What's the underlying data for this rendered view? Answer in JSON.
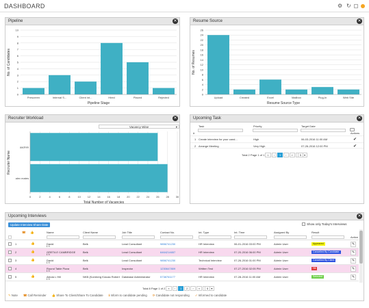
{
  "header": {
    "title": "DASHBOARD"
  },
  "pipeline": {
    "title": "Pipeline",
    "chart_data": {
      "type": "bar",
      "categories": [
        "Prescreen",
        "Internal S...",
        "Client int...",
        "Hired",
        "Placed",
        "Rejected"
      ],
      "values": [
        1,
        3,
        2,
        8,
        5,
        1
      ],
      "ylim": [
        0,
        10
      ],
      "yticks": [
        0,
        1,
        2,
        3,
        4,
        5,
        6,
        7,
        8,
        9,
        10
      ],
      "xlabel": "Pipeline Stage",
      "ylabel": "No. of Candidates",
      "color": "#3fb0c4"
    }
  },
  "resume": {
    "title": "Resume Source",
    "chart_data": {
      "type": "bar",
      "categories": [
        "Upload",
        "Created",
        "Excel",
        "Mailbox",
        "Plug-In",
        "Web Site"
      ],
      "values": [
        24,
        2,
        6,
        2,
        3,
        2
      ],
      "ylim": [
        0,
        26
      ],
      "yticks": [
        0,
        2,
        4,
        6,
        8,
        10,
        12,
        14,
        16,
        18,
        20,
        22,
        24,
        26
      ],
      "xlabel": "Resume Source Type",
      "ylabel": "No. of Resumes",
      "color": "#3fb0c4"
    }
  },
  "recruiter": {
    "title": "Recruiter Workload",
    "dropdown": "Vacancy Wise",
    "chart_data": {
      "type": "bar",
      "orientation": "horizontal",
      "categories": [
        "aadmin",
        "alex mates"
      ],
      "values": [
        26,
        28
      ],
      "xlim": [
        0,
        30
      ],
      "xticks": [
        0,
        2,
        4,
        6,
        8,
        10,
        12,
        14,
        16,
        18,
        20,
        22,
        24,
        26,
        28,
        30
      ],
      "xlabel": "Total Number of Vacancies",
      "ylabel": "Recruiter Name",
      "color": "#3fb0c4"
    }
  },
  "tasks": {
    "title": "Upcoming Task",
    "columns": [
      "#",
      "Task",
      "Priority",
      "Target Date",
      "Actions"
    ],
    "rows": [
      {
        "n": "1",
        "task": "Create interview for your cand...",
        "priority": "High",
        "date": "06-03-2016 11:00 AM"
      },
      {
        "n": "2",
        "task": "Arrange Meeting",
        "priority": "Very High",
        "date": "07-26-2016 12:00 PM"
      }
    ],
    "pager": "Total 2 Page 1 of 1",
    "page": "1",
    "page_size": "5"
  },
  "interviews": {
    "title": "Upcoming Interviews",
    "update_button": "Update Interview Share Date",
    "show_today": "Show only Today's Interviews",
    "columns": [
      "",
      "",
      "",
      "Name",
      "Client Name",
      "Job Title",
      "Contact No.",
      "Int. Type",
      "Int. Time",
      "Assigned By",
      "Result",
      "Action"
    ],
    "rows": [
      {
        "n": "1",
        "name": "David",
        "client": "Belk",
        "job": "Lead Consultant",
        "contact": "9856741230",
        "type": "HR Interview",
        "time": "06-01-2016 03:00 PM",
        "by": "Admin User",
        "result": "Appeared",
        "rc": "#f5f500",
        "tc": "#333"
      },
      {
        "n": "2",
        "name": "GRETA E CAMBRIDGE",
        "client": "Belk",
        "job": "Lead Consultant",
        "contact": "6464214657",
        "type": "HR Interview",
        "time": "07-20-2016 06:00 PM",
        "by": "Admin User",
        "result": "Cancelled By Candidate",
        "rc": "#2f54e0",
        "tc": "#fff"
      },
      {
        "n": "3",
        "name": "David",
        "client": "Belk",
        "job": "Lead Consultant",
        "contact": "9856741230",
        "type": "Technical Interview",
        "time": "07-26-2016 01:00 PM",
        "by": "Admin User",
        "result": "Cancelled By Client",
        "rc": "#2f54e0",
        "tc": "#fff"
      },
      {
        "n": "4",
        "name": "Round Table Pizza",
        "client": "Belk",
        "job": "Inspector",
        "contact": "1230647809",
        "type": "Written Test",
        "time": "07-27-2016 02:05 PM",
        "by": "Admin User",
        "result": "Hit",
        "rc": "#e03a3a",
        "tc": "#fff"
      },
      {
        "n": "5",
        "name": "Alecia L Hill",
        "client": "NKB (Kornberg Krauss Roberts)",
        "job": "Database Administrator",
        "contact": "5738761177",
        "type": "HR Interview",
        "time": "07-28-2016 11:00 AM",
        "by": "Admin User",
        "result": "Selected",
        "rc": "#6fcf4a",
        "tc": "#fff"
      }
    ],
    "pager": "Total 8 Page 1 of 2",
    "pages": [
      "1",
      "2"
    ],
    "page_size": "5",
    "legend": [
      "Note",
      "Call Reminder",
      "Share To Client/Share To Candidate",
      "Inform to candidate pending",
      "Candidate not responding",
      "Informed to candidate"
    ]
  }
}
